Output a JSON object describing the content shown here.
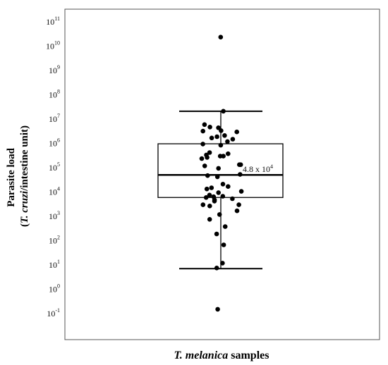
{
  "chart_data": {
    "type": "box",
    "xlabel_italic": "T. melanica",
    "xlabel_rest": " samples",
    "ylabel_line1": "Parasite load",
    "ylabel_line2_open": "(",
    "ylabel_line2_italic": "T. cruzi",
    "ylabel_line2_rest": "/intestine unit)",
    "y_scale": "log10",
    "y_tick_base": "10",
    "y_tick_exponents": [
      -1,
      0,
      1,
      2,
      3,
      4,
      5,
      6,
      7,
      8,
      9,
      10,
      11
    ],
    "ylim_log10": [
      -2.1,
      11.5
    ],
    "box": {
      "whisker_low_log10": 0.82,
      "q1_log10": 3.75,
      "median_log10": 4.68,
      "q3_log10": 5.96,
      "whisker_high_log10": 7.3
    },
    "median_label_base": "4.8 x 10",
    "median_label_exp": "4",
    "points_log10": [
      10.35,
      7.3,
      6.75,
      6.65,
      6.62,
      6.5,
      6.48,
      6.45,
      6.3,
      6.25,
      6.2,
      6.15,
      6.05,
      5.95,
      5.9,
      5.6,
      5.55,
      5.5,
      5.45,
      5.45,
      5.4,
      5.35,
      5.1,
      5.1,
      5.05,
      4.95,
      4.7,
      4.65,
      4.6,
      4.3,
      4.2,
      4.15,
      4.1,
      4.0,
      3.95,
      3.85,
      3.8,
      3.78,
      3.75,
      3.7,
      3.65,
      3.6,
      3.45,
      3.45,
      3.4,
      3.2,
      3.05,
      2.85,
      2.55,
      2.25,
      1.8,
      1.05,
      0.85,
      -0.85
    ],
    "grid": false,
    "style": {
      "box_color": "#000000",
      "point_color": "#000000",
      "background": "#ffffff"
    }
  }
}
